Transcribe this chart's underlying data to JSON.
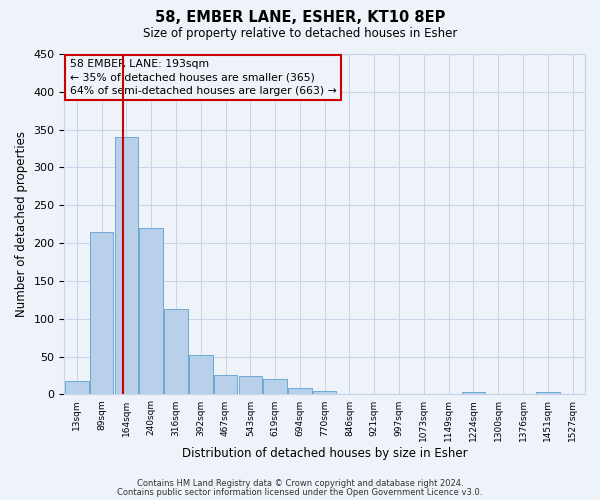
{
  "title": "58, EMBER LANE, ESHER, KT10 8EP",
  "subtitle": "Size of property relative to detached houses in Esher",
  "xlabel": "Distribution of detached houses by size in Esher",
  "ylabel": "Number of detached properties",
  "bin_labels": [
    "13sqm",
    "89sqm",
    "164sqm",
    "240sqm",
    "316sqm",
    "392sqm",
    "467sqm",
    "543sqm",
    "619sqm",
    "694sqm",
    "770sqm",
    "846sqm",
    "921sqm",
    "997sqm",
    "1073sqm",
    "1149sqm",
    "1224sqm",
    "1300sqm",
    "1376sqm",
    "1451sqm",
    "1527sqm"
  ],
  "bar_values": [
    18,
    215,
    340,
    220,
    113,
    52,
    26,
    24,
    20,
    8,
    5,
    0,
    0,
    0,
    0,
    0,
    3,
    0,
    0,
    3,
    0
  ],
  "bar_color": "#b8d0ea",
  "bar_edgecolor": "#6aaad4",
  "grid_color": "#c8d4e8",
  "background_color": "#eef2f9",
  "vline_x_bin": 2,
  "vline_color": "#cc0000",
  "ylim": [
    0,
    450
  ],
  "yticks": [
    0,
    50,
    100,
    150,
    200,
    250,
    300,
    350,
    400,
    450
  ],
  "annotation_text": "58 EMBER LANE: 193sqm\n← 35% of detached houses are smaller (365)\n64% of semi-detached houses are larger (663) →",
  "annotation_box_edgecolor": "#cc0000",
  "footer1": "Contains HM Land Registry data © Crown copyright and database right 2024.",
  "footer2": "Contains public sector information licensed under the Open Government Licence v3.0.",
  "bin_edges_sqm": [
    13,
    89,
    164,
    240,
    316,
    392,
    467,
    543,
    619,
    694,
    770,
    846,
    921,
    997,
    1073,
    1149,
    1224,
    1300,
    1376,
    1451,
    1527,
    1603
  ]
}
